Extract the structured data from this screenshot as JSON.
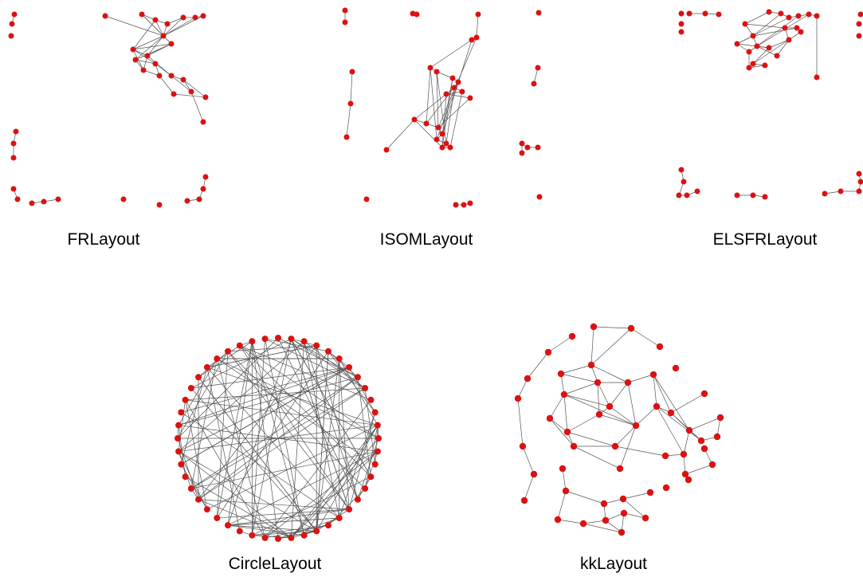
{
  "captions": {
    "fr": "FRLayout",
    "isom": "ISOMLayout",
    "elsfr": "ELSFRLayout",
    "circle": "CircleLayout",
    "kk": "kkLayout"
  },
  "colors": {
    "node": "#dd1111",
    "edge": "#555555",
    "background": "#ffffff"
  }
}
